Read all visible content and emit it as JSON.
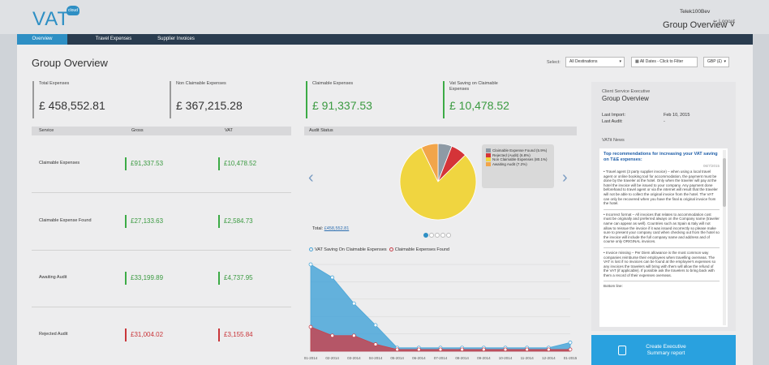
{
  "app": {
    "logo": "VAT",
    "logo_badge": "cloud"
  },
  "user": {
    "name": "Telek100Bev",
    "logout": "Logout",
    "logout_icon": "logout-arrow-icon"
  },
  "header": {
    "page_title": "Group Overview",
    "page_title_caret": "˅"
  },
  "nav": {
    "tabs": [
      {
        "label": "Overview",
        "active": true
      },
      {
        "label": "Travel Expenses"
      },
      {
        "label": "Supplier Invoices"
      }
    ]
  },
  "main": {
    "title": "Group Overview",
    "filters": {
      "label": "Select:",
      "destination": "All Destinations",
      "dates": "All Dates - Click to Filter",
      "currency": "GBP (£)"
    }
  },
  "stats": [
    {
      "label": "Total Expenses",
      "value": "£ 458,552.81"
    },
    {
      "label": "Non Claimable Expenses",
      "value": "£ 367,215.28"
    },
    {
      "label": "Claimable Expenses",
      "value": "£ 91,337.53"
    },
    {
      "label": "Vat Saving on Claimable Expenses",
      "value": "£ 10,478.52"
    }
  ],
  "table": {
    "headers": [
      "Service",
      "Gross",
      "VAT"
    ],
    "rows": [
      {
        "service": "Claimable Expenses",
        "gross": "£91,337.53",
        "vat": "£10,478.52",
        "status": "green"
      },
      {
        "service": "Claimable Expense Found",
        "gross": "£27,133.63",
        "vat": "£2,584.73",
        "status": "green"
      },
      {
        "service": "Awaiting Audit",
        "gross": "£33,199.89",
        "vat": "£4,737.95",
        "status": "green"
      },
      {
        "service": "Rejected Audit",
        "gross": "£31,004.02",
        "vat": "£3,155.84",
        "status": "red"
      }
    ]
  },
  "audit": {
    "title": "Audit Status",
    "total_label": "Total:",
    "total_value": "£458,552.81",
    "legend": [
      {
        "label": "Claimable Expense Found (5.9%)",
        "color": "#8e9aa5"
      },
      {
        "label": "Rejected (Audit) (6.8%)",
        "color": "#d43438"
      },
      {
        "label": "Non Claimable Expenses (80.1%)",
        "color": "#f0d540"
      },
      {
        "label": "Awaiting Audit (7.2%)",
        "color": "#f2a54a"
      }
    ]
  },
  "vat_chart": {
    "legend": [
      "VAT Saving On Claimable Expenses",
      "Claimable Expenses Found"
    ],
    "colors": [
      "#4aa6d8",
      "#c9404a"
    ]
  },
  "chart_data": [
    {
      "type": "pie",
      "title": "Audit Status",
      "labels": [
        "Claimable Expense Found",
        "Rejected (Audit)",
        "Non Claimable Expenses",
        "Awaiting Audit"
      ],
      "values": [
        5.9,
        6.8,
        80.1,
        7.2
      ]
    },
    {
      "type": "area",
      "categories": [
        "01-2014",
        "02-2014",
        "03-2014",
        "04-2014",
        "05-2014",
        "06-2014",
        "07-2014",
        "08-2014",
        "09-2014",
        "10-2014",
        "11-2014",
        "12-2014",
        "01-2015"
      ],
      "series": [
        {
          "name": "VAT Saving On Claimable Expenses",
          "values": [
            100,
            85,
            55,
            30,
            4,
            4,
            4,
            4,
            4,
            4,
            4,
            4,
            10
          ]
        },
        {
          "name": "Claimable Expenses Found",
          "values": [
            28,
            18,
            18,
            8,
            2,
            2,
            2,
            2,
            2,
            2,
            2,
            2,
            2
          ]
        }
      ]
    }
  ],
  "sidebar": {
    "role": "Client Service Executive",
    "title": "Group Overview",
    "last_import_label": "Last Import:",
    "last_import_value": "Feb 10, 2015",
    "last_audit_label": "Last Audit:",
    "last_audit_value": "-",
    "news_label": "VATit News",
    "news_title": "Top recommendations for increasing your VAT saving on T&E expenses:",
    "news_date": "06/7/2015",
    "news_p1": "• Travel agent (3 party supplier invoice) – when using a local travel agent or online booking tool for accommodation, the payment must be done by the traveler at the hotel. Only when the traveler will pay at the hotel the invoice will be issued to your company. Any payment done beforehand to travel agent or via the internet will result that the traveler will not be able to collect the original invoice from the hotel. The VAT can only be recovered when you have the final & original invoice from the hotel.",
    "news_p2": "• Incorrect format – All invoices that relates to accommodation cost must be originally and preferred always on the Company name (traveler name can appear as well). Countries such as Spain & Italy will not allow to reissue the invoice if it was issued incorrectly so please make sure to present your company card when checking out from the hotel so the invoice will include the full company name and address and of course only ORIGINAL invoices.",
    "news_p3": "• Invoice missing – Per Diem allowance is the most common way companies reimburse their employees when travelling overseas. The VAT is lost if no invoices can be found at the employee's expenses so any invoices the travelers will bring with them will allow the refund of the VAT (if applicable). If possible ask the travelers to bring back with them a record of their expenses overseas.",
    "news_p4": "Bottom line:",
    "cta": "Create Executive Summary report"
  }
}
